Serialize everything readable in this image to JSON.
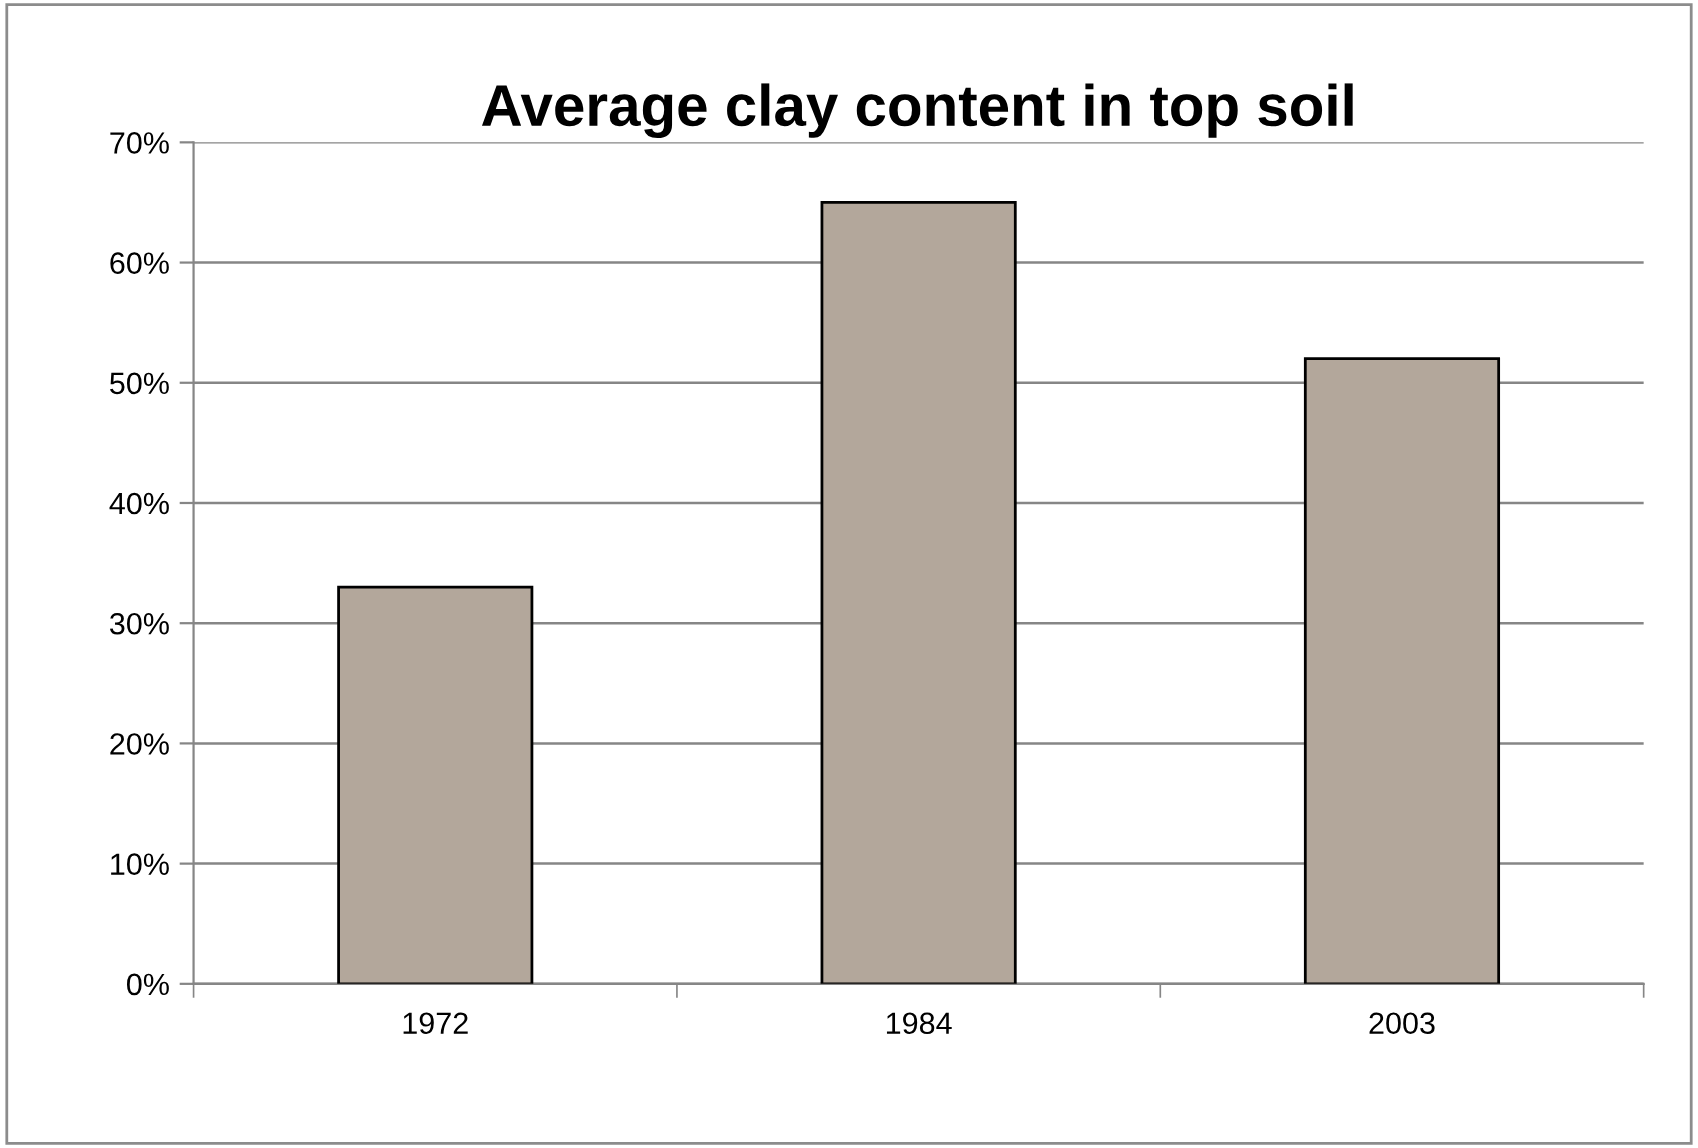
{
  "chart_data": {
    "type": "bar",
    "title": "Average clay content in top soil",
    "categories": [
      "1972",
      "1984",
      "2003"
    ],
    "values": [
      33,
      65,
      52
    ],
    "color": "#b3a79b",
    "ylim": [
      0,
      70
    ],
    "yticks": [
      {
        "value": 0,
        "label": "0%"
      },
      {
        "value": 10,
        "label": "10%"
      },
      {
        "value": 20,
        "label": "20%"
      },
      {
        "value": 30,
        "label": "30%"
      },
      {
        "value": 40,
        "label": "40%"
      },
      {
        "value": 50,
        "label": "50%"
      },
      {
        "value": 60,
        "label": "60%"
      },
      {
        "value": 70,
        "label": "70%"
      }
    ],
    "grid": "y",
    "legend": false
  }
}
